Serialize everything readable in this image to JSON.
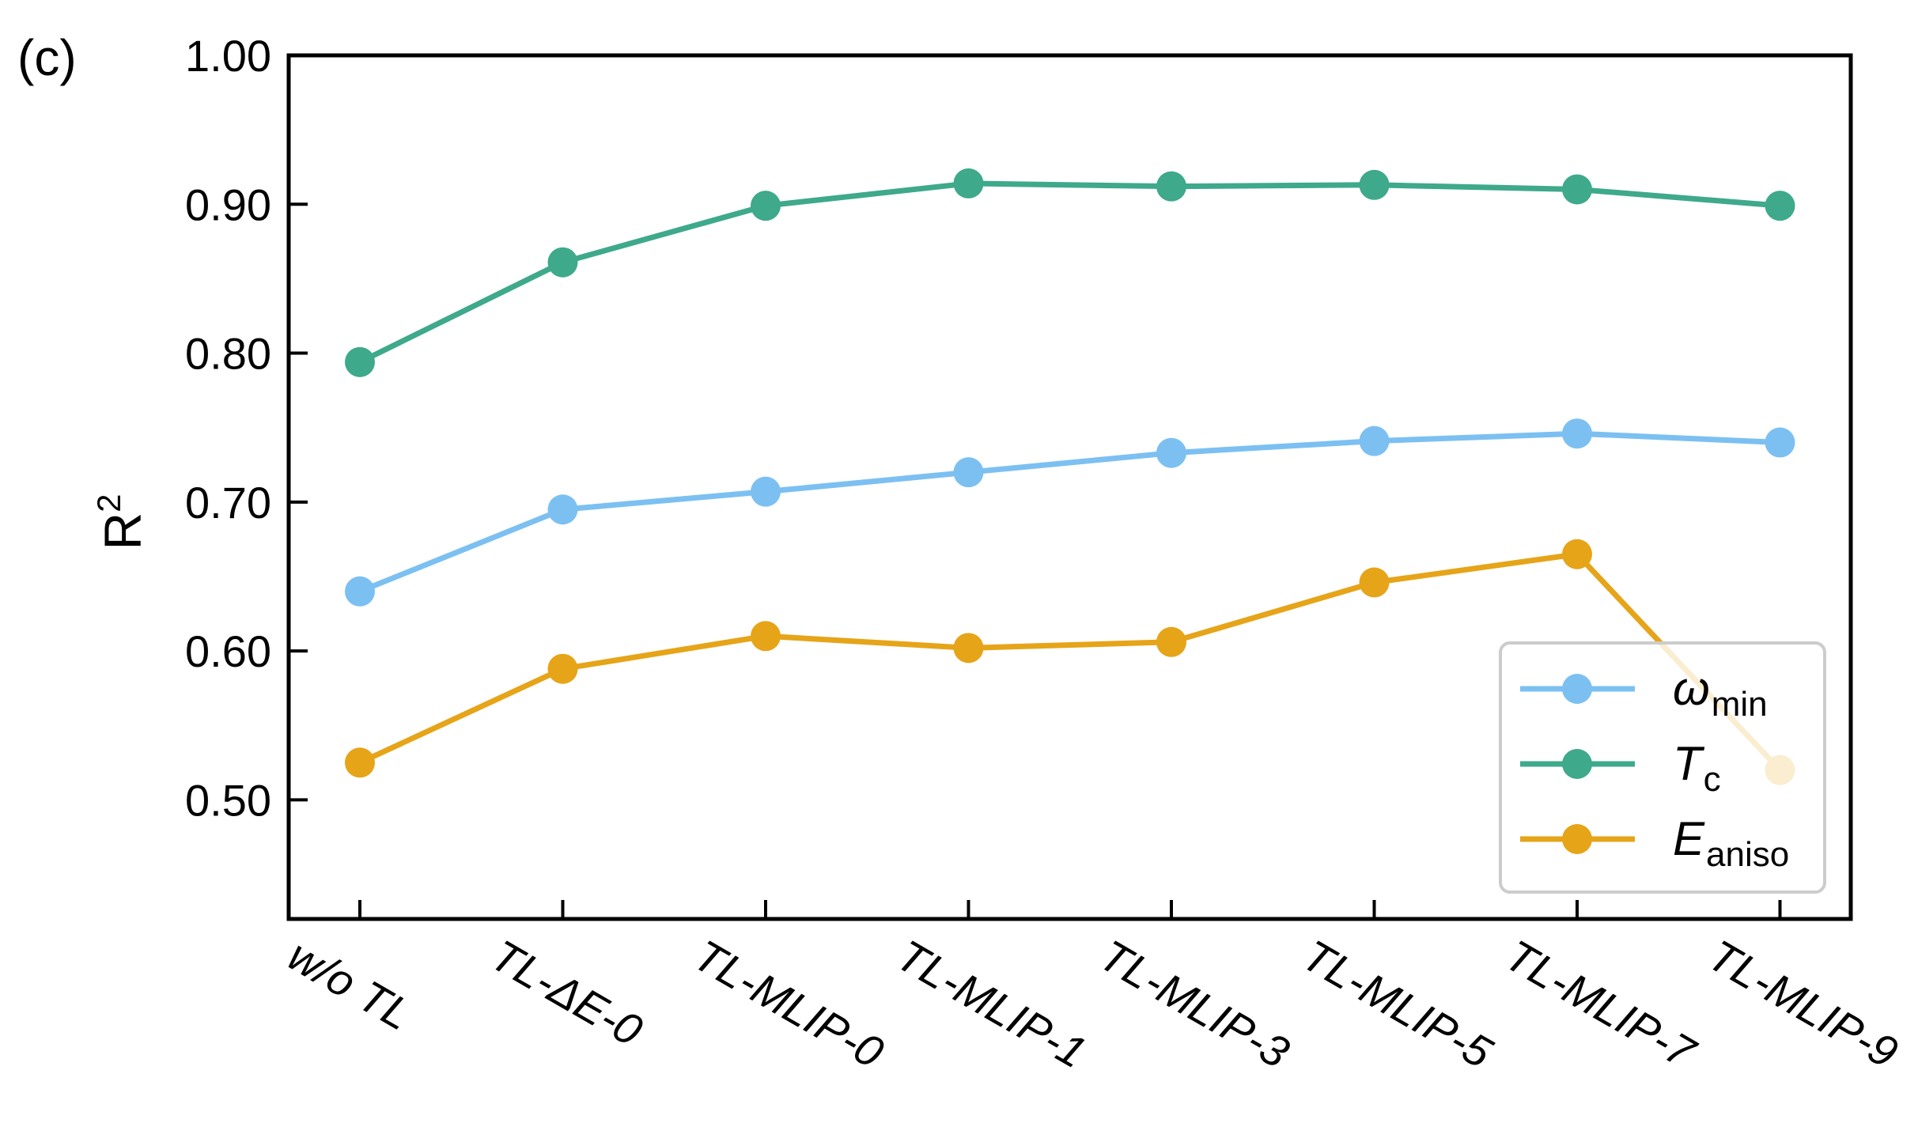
{
  "panel_label": "(c)",
  "chart_data": {
    "type": "line",
    "ylabel": "R",
    "ylabel_sup": "2",
    "ylim": [
      0.42,
      1.0
    ],
    "yticks": [
      "1.00",
      "0.90",
      "0.80",
      "0.70",
      "0.60",
      "0.50"
    ],
    "ytick_values": [
      1.0,
      0.9,
      0.8,
      0.7,
      0.6,
      0.5
    ],
    "categories": [
      "w/o TL",
      "TL-ΔE-0",
      "TL-MLIP-0",
      "TL-MLIP-1",
      "TL-MLIP-3",
      "TL-MLIP-5",
      "TL-MLIP-7",
      "TL-MLIP-9"
    ],
    "series": [
      {
        "name": "ω",
        "subscript": "min",
        "color": "#7cc0f2",
        "values": [
          0.64,
          0.695,
          0.707,
          0.72,
          0.733,
          0.741,
          0.746,
          0.74
        ]
      },
      {
        "name": "T",
        "subscript": "c",
        "color": "#3ea98b",
        "values": [
          0.794,
          0.861,
          0.899,
          0.914,
          0.912,
          0.913,
          0.91,
          0.899
        ]
      },
      {
        "name": "E",
        "subscript": "aniso",
        "color": "#e6a418",
        "values": [
          0.525,
          0.588,
          0.61,
          0.602,
          0.606,
          0.646,
          0.665,
          0.52
        ]
      }
    ],
    "grid": false,
    "legend_position": "bottom-right"
  }
}
